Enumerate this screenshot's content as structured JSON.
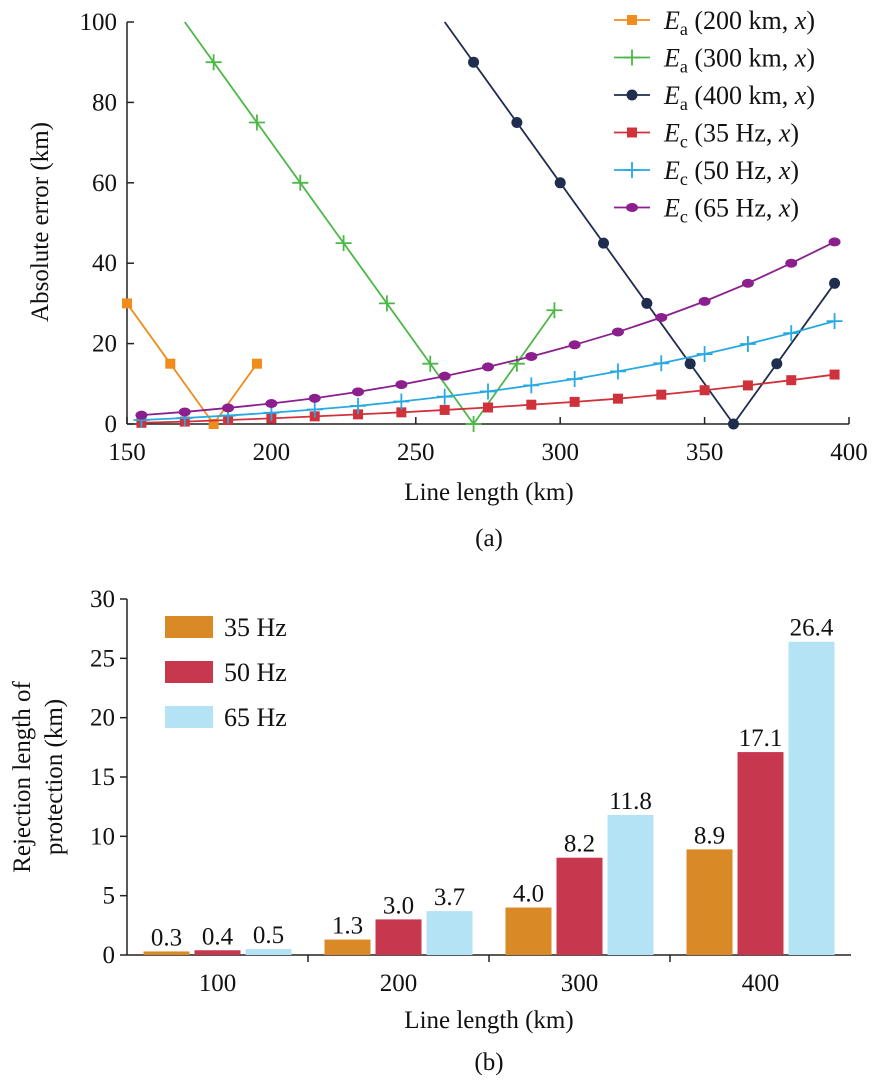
{
  "chart_data": [
    {
      "panel_label": "(a)",
      "type": "line",
      "xlabel": "Line length (km)",
      "ylabel": "Absolute error (km)",
      "xlim": [
        150,
        400
      ],
      "ylim": [
        0,
        100
      ],
      "xticks": [
        "150",
        "200",
        "250",
        "300",
        "350",
        "400"
      ],
      "yticks": [
        "0",
        "20",
        "40",
        "60",
        "80",
        "100"
      ],
      "legend_position": "top-right",
      "series": [
        {
          "name": "E_a (200 km, x)",
          "legend_main": "E",
          "legend_sub": "a",
          "legend_text": " (200 km, ",
          "legend_var": "x",
          "legend_close": ")",
          "color": "#f08c1e",
          "marker": "square",
          "x": [
            150,
            165,
            180,
            195
          ],
          "y": [
            30,
            15,
            0,
            15
          ],
          "line_x": [
            150,
            165,
            180,
            195
          ],
          "line_y": [
            30,
            15,
            0,
            15
          ]
        },
        {
          "name": "E_a (300 km, x)",
          "legend_main": "E",
          "legend_sub": "a",
          "legend_text": " (300 km, ",
          "legend_var": "x",
          "legend_close": ")",
          "color": "#4cb848",
          "marker": "plus",
          "x": [
            180,
            195,
            210,
            225,
            240,
            255,
            270,
            285,
            298
          ],
          "y": [
            90,
            75,
            60,
            45,
            30,
            15,
            0,
            15,
            28.3
          ],
          "line_x": [
            170,
            270,
            298
          ],
          "line_y": [
            100,
            0,
            28.3
          ]
        },
        {
          "name": "E_a (400 km, x)",
          "legend_main": "E",
          "legend_sub": "a",
          "legend_text": " (400 km, ",
          "legend_var": "x",
          "legend_close": ")",
          "color": "#1f2d4e",
          "marker": "circle",
          "x": [
            270,
            285,
            300,
            315,
            330,
            345,
            360,
            375,
            395
          ],
          "y": [
            90,
            75,
            60,
            45,
            30,
            15,
            0,
            15,
            35
          ],
          "line_x": [
            260,
            360,
            395
          ],
          "line_y": [
            100,
            0,
            35
          ]
        },
        {
          "name": "E_c (35 Hz, x)",
          "legend_main": "E",
          "legend_sub": "c",
          "legend_text": " (35 Hz, ",
          "legend_var": "x",
          "legend_close": ")",
          "color": "#d0323c",
          "marker": "square",
          "x": [
            155,
            170,
            185,
            200,
            215,
            230,
            245,
            260,
            275,
            290,
            305,
            320,
            335,
            350,
            365,
            380,
            395
          ],
          "y": [
            0.3,
            0.6,
            1.0,
            1.4,
            1.9,
            2.4,
            2.9,
            3.5,
            4.1,
            4.8,
            5.5,
            6.3,
            7.3,
            8.4,
            9.6,
            10.9,
            12.3
          ],
          "line_x": [
            155,
            170,
            185,
            200,
            215,
            230,
            245,
            260,
            275,
            290,
            305,
            320,
            335,
            350,
            365,
            380,
            395
          ],
          "line_y": [
            0.3,
            0.6,
            1.0,
            1.4,
            1.9,
            2.4,
            2.9,
            3.5,
            4.1,
            4.8,
            5.5,
            6.3,
            7.3,
            8.4,
            9.6,
            10.9,
            12.3
          ]
        },
        {
          "name": "E_c (50 Hz, x)",
          "legend_main": "E",
          "legend_sub": "c",
          "legend_text": " (50 Hz, ",
          "legend_var": "x",
          "legend_close": ")",
          "color": "#27a9e1",
          "marker": "plus",
          "x": [
            155,
            170,
            185,
            200,
            215,
            230,
            245,
            260,
            275,
            290,
            305,
            320,
            335,
            350,
            365,
            380,
            395
          ],
          "y": [
            1.0,
            1.5,
            2.1,
            2.8,
            3.6,
            4.5,
            5.6,
            6.8,
            8.1,
            9.6,
            11.2,
            13.1,
            15.1,
            17.4,
            19.9,
            22.6,
            25.6
          ],
          "line_x": [
            155,
            170,
            185,
            200,
            215,
            230,
            245,
            260,
            275,
            290,
            305,
            320,
            335,
            350,
            365,
            380,
            395
          ],
          "line_y": [
            1.0,
            1.5,
            2.1,
            2.8,
            3.6,
            4.5,
            5.6,
            6.8,
            8.1,
            9.6,
            11.2,
            13.1,
            15.1,
            17.4,
            19.9,
            22.6,
            25.6
          ]
        },
        {
          "name": "E_c (65 Hz, x)",
          "legend_main": "E",
          "legend_sub": "c",
          "legend_text": " (65 Hz, ",
          "legend_var": "x",
          "legend_close": ")",
          "color": "#8b1f8e",
          "marker": "ellipse",
          "x": [
            155,
            170,
            185,
            200,
            215,
            230,
            245,
            260,
            275,
            290,
            305,
            320,
            335,
            350,
            365,
            380,
            395
          ],
          "y": [
            2.2,
            3.0,
            4.0,
            5.1,
            6.4,
            8.0,
            9.8,
            11.9,
            14.2,
            16.8,
            19.7,
            22.9,
            26.5,
            30.5,
            35.0,
            40.0,
            45.3
          ],
          "line_x": [
            155,
            170,
            185,
            200,
            215,
            230,
            245,
            260,
            275,
            290,
            305,
            320,
            335,
            350,
            365,
            380,
            395
          ],
          "line_y": [
            2.2,
            3.0,
            4.0,
            5.1,
            6.4,
            8.0,
            9.8,
            11.9,
            14.2,
            16.8,
            19.7,
            22.9,
            26.5,
            30.5,
            35.0,
            40.0,
            45.3
          ]
        }
      ]
    },
    {
      "panel_label": "(b)",
      "type": "bar",
      "xlabel": "Line length (km)",
      "ylabel_lines": [
        "Rejection length of",
        "protection (km)"
      ],
      "ylim": [
        0,
        30
      ],
      "yticks": [
        "0",
        "5",
        "10",
        "15",
        "20",
        "25",
        "30"
      ],
      "categories": [
        "100",
        "200",
        "300",
        "400"
      ],
      "legend_position": "top-left",
      "series": [
        {
          "name": "35 Hz",
          "color": "#d98a26",
          "values": [
            0.3,
            1.3,
            4.0,
            8.9
          ],
          "labels": [
            "0.3",
            "1.3",
            "4.0",
            "8.9"
          ]
        },
        {
          "name": "50 Hz",
          "color": "#c7384e",
          "values": [
            0.4,
            3.0,
            8.2,
            17.1
          ],
          "labels": [
            "0.4",
            "3.0",
            "8.2",
            "17.1"
          ]
        },
        {
          "name": "65 Hz",
          "color": "#b5e3f6",
          "values": [
            0.5,
            3.7,
            11.8,
            26.4
          ],
          "labels": [
            "0.5",
            "3.7",
            "11.8",
            "26.4"
          ]
        }
      ]
    }
  ]
}
